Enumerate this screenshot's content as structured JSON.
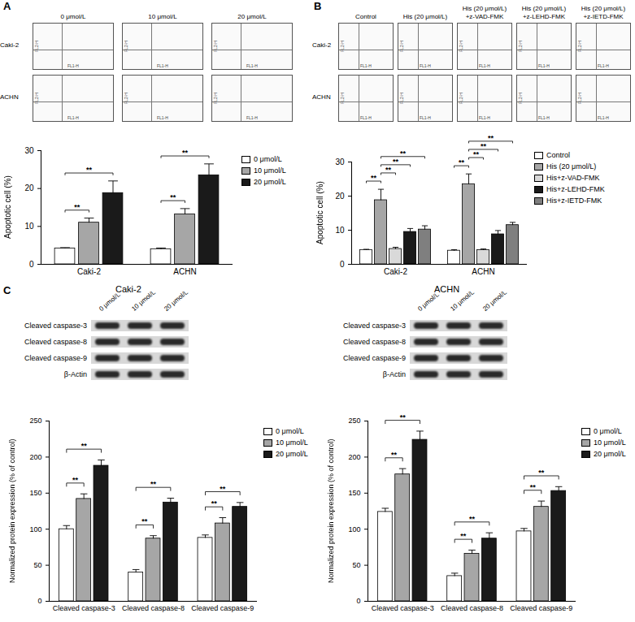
{
  "chart_data": [
    {
      "type": "bar",
      "categories": [
        "Caki-2",
        "ACHN"
      ],
      "y_label": "Apoptotic cell (%)",
      "ylim": [
        0,
        30
      ],
      "yticks": [
        0,
        10,
        20,
        30
      ],
      "series": [
        {
          "name": "0 μmol/L",
          "color": "#ffffff",
          "values": [
            4.2,
            4.0
          ],
          "errors": [
            0.2,
            0.3
          ]
        },
        {
          "name": "10 μmol/L",
          "color": "#a6a6a6",
          "values": [
            11.0,
            13.2
          ],
          "errors": [
            1.2,
            1.5
          ]
        },
        {
          "name": "20 μmol/L",
          "color": "#1a1a1a",
          "values": [
            18.8,
            23.5
          ],
          "errors": [
            3.2,
            3.0
          ]
        }
      ],
      "comparisons": [
        {
          "category": "Caki-2",
          "from": "0 μmol/L",
          "to": "10 μmol/L",
          "label": "**"
        },
        {
          "category": "Caki-2",
          "from": "0 μmol/L",
          "to": "20 μmol/L",
          "label": "**"
        },
        {
          "category": "ACHN",
          "from": "0 μmol/L",
          "to": "10 μmol/L",
          "label": "**"
        },
        {
          "category": "ACHN",
          "from": "0 μmol/L",
          "to": "20 μmol/L",
          "label": "**"
        }
      ]
    },
    {
      "type": "bar",
      "categories": [
        "Caki-2",
        "ACHN"
      ],
      "y_label": "Apoptotic cell (%)",
      "ylim": [
        0,
        30
      ],
      "yticks": [
        0,
        10,
        20,
        30
      ],
      "series": [
        {
          "name": "Control",
          "color": "#ffffff",
          "values": [
            4.2,
            4.0
          ],
          "errors": [
            0.2,
            0.3
          ]
        },
        {
          "name": "His (20 μmol/L)",
          "color": "#a6a6a6",
          "values": [
            18.8,
            23.5
          ],
          "errors": [
            3.2,
            3.0
          ]
        },
        {
          "name": "His+z-VAD-FMK",
          "color": "#d9d9d9",
          "values": [
            4.5,
            4.2
          ],
          "errors": [
            0.5,
            0.3
          ]
        },
        {
          "name": "His+z-LEHD-FMK",
          "color": "#1a1a1a",
          "values": [
            9.5,
            8.8
          ],
          "errors": [
            1.0,
            1.1
          ]
        },
        {
          "name": "His+z-IETD-FMK",
          "color": "#7f7f7f",
          "values": [
            10.2,
            11.5
          ],
          "errors": [
            1.1,
            0.8
          ]
        }
      ],
      "comparisons": [
        {
          "category": "Caki-2",
          "from": "Control",
          "to": "His (20 μmol/L)",
          "label": "**"
        },
        {
          "category": "Caki-2",
          "from": "His (20 μmol/L)",
          "to": "His+z-VAD-FMK",
          "label": "**"
        },
        {
          "category": "Caki-2",
          "from": "His (20 μmol/L)",
          "to": "His+z-LEHD-FMK",
          "label": "**"
        },
        {
          "category": "Caki-2",
          "from": "His (20 μmol/L)",
          "to": "His+z-IETD-FMK",
          "label": "**"
        },
        {
          "category": "ACHN",
          "from": "Control",
          "to": "His (20 μmol/L)",
          "label": "**"
        },
        {
          "category": "ACHN",
          "from": "His (20 μmol/L)",
          "to": "His+z-VAD-FMK",
          "label": "**"
        },
        {
          "category": "ACHN",
          "from": "His (20 μmol/L)",
          "to": "His+z-LEHD-FMK",
          "label": "**"
        },
        {
          "category": "ACHN",
          "from": "His (20 μmol/L)",
          "to": "His+z-IETD-FMK",
          "label": "**"
        }
      ]
    },
    {
      "type": "bar",
      "categories": [
        "Cleaved caspase-3",
        "Cleaved caspase-8",
        "Cleaved caspase-9"
      ],
      "y_label": "Normalized protein expression (% of control)",
      "ylim": [
        0,
        250
      ],
      "yticks": [
        0,
        50,
        100,
        150,
        200,
        250
      ],
      "series": [
        {
          "name": "0 μmol/L",
          "color": "#ffffff",
          "values": [
            100,
            40,
            88
          ],
          "errors": [
            5,
            4,
            4
          ]
        },
        {
          "name": "10 μmol/L",
          "color": "#a6a6a6",
          "values": [
            142,
            87,
            108
          ],
          "errors": [
            7,
            4,
            8
          ]
        },
        {
          "name": "20 μmol/L",
          "color": "#1a1a1a",
          "values": [
            188,
            137,
            131
          ],
          "errors": [
            8,
            6,
            6
          ]
        }
      ],
      "comparisons": [
        {
          "category": "Cleaved caspase-3",
          "from": "0 μmol/L",
          "to": "10 μmol/L",
          "label": "**"
        },
        {
          "category": "Cleaved caspase-3",
          "from": "0 μmol/L",
          "to": "20 μmol/L",
          "label": "**"
        },
        {
          "category": "Cleaved caspase-8",
          "from": "0 μmol/L",
          "to": "10 μmol/L",
          "label": "**"
        },
        {
          "category": "Cleaved caspase-8",
          "from": "0 μmol/L",
          "to": "20 μmol/L",
          "label": "**"
        },
        {
          "category": "Cleaved caspase-9",
          "from": "0 μmol/L",
          "to": "10 μmol/L",
          "label": "**"
        },
        {
          "category": "Cleaved caspase-9",
          "from": "0 μmol/L",
          "to": "20 μmol/L",
          "label": "**"
        }
      ]
    },
    {
      "type": "bar",
      "categories": [
        "Cleaved caspase-3",
        "Cleaved caspase-8",
        "Cleaved caspase-9"
      ],
      "y_label": "Normalized protein expression (% of control)",
      "ylim": [
        0,
        250
      ],
      "yticks": [
        0,
        50,
        100,
        150,
        200,
        250
      ],
      "series": [
        {
          "name": "0 μmol/L",
          "color": "#ffffff",
          "values": [
            124,
            35,
            97
          ],
          "errors": [
            5,
            4,
            4
          ]
        },
        {
          "name": "10 μmol/L",
          "color": "#a6a6a6",
          "values": [
            176,
            66,
            131
          ],
          "errors": [
            8,
            5,
            8
          ]
        },
        {
          "name": "20 μmol/L",
          "color": "#1a1a1a",
          "values": [
            224,
            87,
            153
          ],
          "errors": [
            12,
            8,
            6
          ]
        }
      ],
      "comparisons": [
        {
          "category": "Cleaved caspase-3",
          "from": "0 μmol/L",
          "to": "10 μmol/L",
          "label": "**"
        },
        {
          "category": "Cleaved caspase-3",
          "from": "0 μmol/L",
          "to": "20 μmol/L",
          "label": "**"
        },
        {
          "category": "Cleaved caspase-8",
          "from": "0 μmol/L",
          "to": "10 μmol/L",
          "label": "**"
        },
        {
          "category": "Cleaved caspase-8",
          "from": "0 μmol/L",
          "to": "20 μmol/L",
          "label": "**"
        },
        {
          "category": "Cleaved caspase-9",
          "from": "0 μmol/L",
          "to": "10 μmol/L",
          "label": "**"
        },
        {
          "category": "Cleaved caspase-9",
          "from": "0 μmol/L",
          "to": "20 μmol/L",
          "label": "**"
        }
      ]
    }
  ],
  "figure": {
    "panel_labels": [
      "A",
      "B",
      "C"
    ],
    "flow": [
      {
        "columns": [
          [
            "0 μmol/L"
          ],
          [
            "10 μmol/L"
          ],
          [
            "20 μmol/L"
          ]
        ],
        "rows": [
          "Caki-2",
          "ACHN"
        ],
        "x_label": "FL1-H",
        "y_label": "FL2-H"
      },
      {
        "columns": [
          [
            "Control"
          ],
          [
            "His (20 μmol/L)"
          ],
          [
            "His (20 μmol/L)",
            "+z-VAD-FMK"
          ],
          [
            "His (20 μmol/L)",
            "+z-LEHD-FMK"
          ],
          [
            "His (20 μmol/L)",
            "+z-IETD-FMK"
          ]
        ],
        "rows": [
          "Caki-2",
          "ACHN"
        ],
        "x_label": "FL1-H",
        "y_label": "FL2-H"
      }
    ],
    "blots": [
      {
        "title": "Caki-2",
        "lanes": [
          "0 μmol/L",
          "10 μmol/L",
          "20 μmol/L"
        ],
        "proteins": [
          "Cleaved caspase-3",
          "Cleaved caspase-8",
          "Cleaved caspase-9",
          "β-Actin"
        ]
      },
      {
        "title": "ACHN",
        "lanes": [
          "0 μmol/L",
          "10 μmol/L",
          "20 μmol/L"
        ],
        "proteins": [
          "Cleaved caspase-3",
          "Cleaved caspase-8",
          "Cleaved caspase-9",
          "β-Actin"
        ]
      }
    ]
  }
}
